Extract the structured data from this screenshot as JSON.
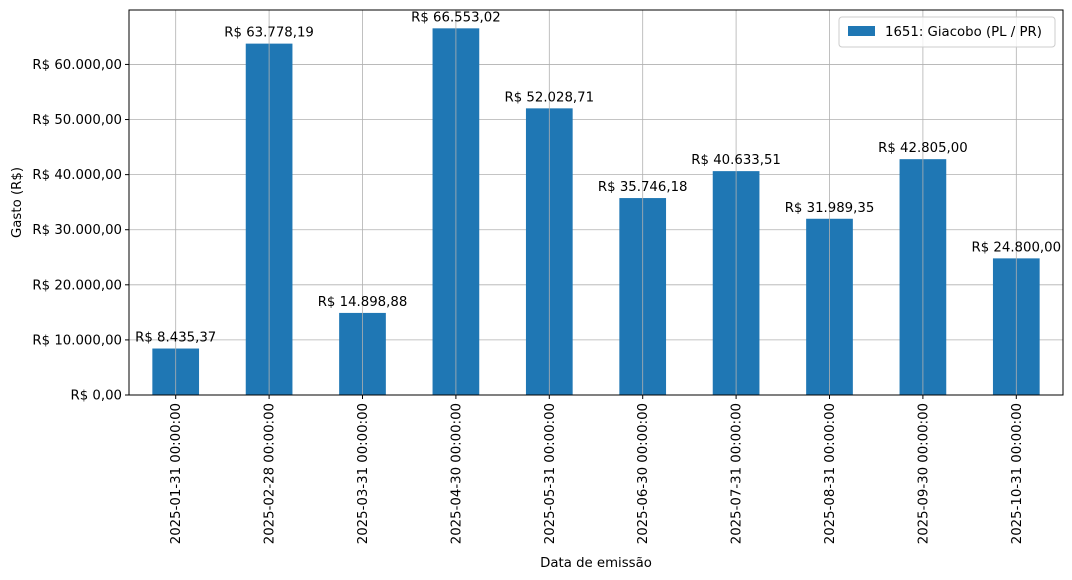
{
  "chart_data": {
    "type": "bar",
    "xlabel": "Data de emissão",
    "ylabel": "Gasto (R$)",
    "categories": [
      "2025-01-31 00:00:00",
      "2025-02-28 00:00:00",
      "2025-03-31 00:00:00",
      "2025-04-30 00:00:00",
      "2025-05-31 00:00:00",
      "2025-06-30 00:00:00",
      "2025-07-31 00:00:00",
      "2025-08-31 00:00:00",
      "2025-09-30 00:00:00",
      "2025-10-31 00:00:00"
    ],
    "series": [
      {
        "name": "1651: Giacobo (PL / PR)",
        "color": "#1f77b4",
        "values": [
          8435.37,
          63778.19,
          14898.88,
          66553.02,
          52028.71,
          35746.18,
          40633.51,
          31989.35,
          42805.0,
          24800.0
        ],
        "value_labels": [
          "R$ 8.435,37",
          "R$ 63.778,19",
          "R$ 14.898,88",
          "R$ 66.553,02",
          "R$ 52.028,71",
          "R$ 35.746,18",
          "R$ 40.633,51",
          "R$ 31.989,35",
          "R$ 42.805,00",
          "R$ 24.800,00"
        ]
      }
    ],
    "ylim": [
      0,
      69880.67
    ],
    "yticks": [
      0,
      10000,
      20000,
      30000,
      40000,
      50000,
      60000
    ],
    "ytick_labels": [
      "R$ 0,00",
      "R$ 10.000,00",
      "R$ 20.000,00",
      "R$ 30.000,00",
      "R$ 40.000,00",
      "R$ 50.000,00",
      "R$ 60.000,00"
    ],
    "grid": true,
    "legend_position": "top-right"
  }
}
